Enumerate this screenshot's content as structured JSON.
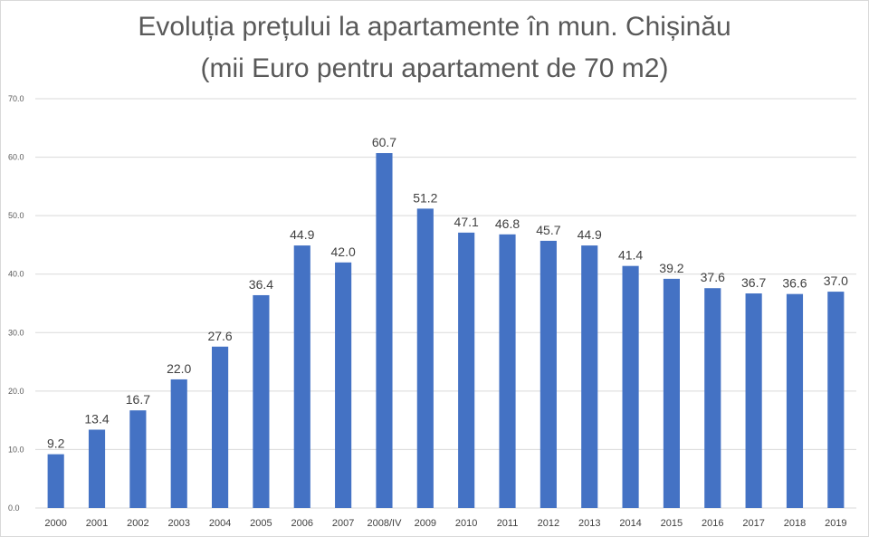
{
  "chart_data": {
    "type": "bar",
    "title": "Evoluția prețului la apartamente în mun. Chișinău",
    "subtitle": "(mii Euro pentru apartament de 70 m2)",
    "categories": [
      "2000",
      "2001",
      "2002",
      "2003",
      "2004",
      "2005",
      "2006",
      "2007",
      "2008/IV",
      "2009",
      "2010",
      "2011",
      "2012",
      "2013",
      "2014",
      "2015",
      "2016",
      "2017",
      "2018",
      "2019"
    ],
    "values": [
      9.2,
      13.4,
      16.7,
      22.0,
      27.6,
      36.4,
      44.9,
      42.0,
      60.7,
      51.2,
      47.1,
      46.8,
      45.7,
      44.9,
      41.4,
      39.2,
      37.6,
      36.7,
      36.6,
      37.0
    ],
    "value_labels": [
      "9.2",
      "13.4",
      "16.7",
      "22.0",
      "27.6",
      "36.4",
      "44.9",
      "42.0",
      "60.7",
      "51.2",
      "47.1",
      "46.8",
      "45.7",
      "44.9",
      "41.4",
      "39.2",
      "37.6",
      "36.7",
      "36.6",
      "37.0"
    ],
    "yticks": [
      "0.0",
      "10.0",
      "20.0",
      "30.0",
      "40.0",
      "50.0",
      "60.0",
      "70.0"
    ],
    "ylim": [
      0,
      70
    ],
    "grid": true,
    "bar_color": "#4472C4",
    "grid_color": "#d9d9d9"
  }
}
